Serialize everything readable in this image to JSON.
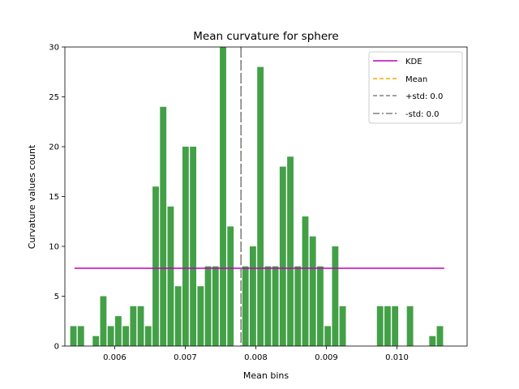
{
  "chart_data": {
    "type": "bar",
    "title": "Mean curvature for sphere",
    "xlabel": "Mean bins",
    "ylabel": "Curvature values count",
    "xlim": [
      0.005294,
      0.010994
    ],
    "ylim": [
      0,
      30
    ],
    "xticks": [
      0.006,
      0.007,
      0.008,
      0.009,
      0.01
    ],
    "xtick_labels": [
      "0.006",
      "0.007",
      "0.008",
      "0.009",
      "0.010"
    ],
    "yticks": [
      0,
      5,
      10,
      15,
      20,
      25,
      30
    ],
    "ytick_labels": [
      "0",
      "5",
      "10",
      "15",
      "20",
      "25",
      "30"
    ],
    "bin_start": 0.00537,
    "bin_width": 0.000106,
    "bar_fraction": 0.85,
    "bar_color": "#43a047",
    "values": [
      2,
      2,
      0,
      1,
      5,
      2,
      3,
      2,
      4,
      4,
      2,
      16,
      24,
      14,
      6,
      20,
      20,
      6,
      8,
      8,
      30,
      12,
      0,
      8,
      10,
      28,
      8,
      8,
      18,
      19,
      8,
      13,
      11,
      8,
      2,
      10,
      4,
      0,
      0,
      0,
      0,
      4,
      4,
      4,
      0,
      4,
      0,
      0,
      1,
      2
    ],
    "kde": {
      "name": "KDE",
      "x": [
        0.00543,
        0.01067
      ],
      "y": [
        7.8,
        7.8
      ],
      "color": "#bf00bf"
    },
    "mean": {
      "name": "Mean",
      "x": 0.00779,
      "color": "#ffa500"
    },
    "plus_std": {
      "name": "+std: 0.0",
      "x": 0.00779,
      "color": "#808080"
    },
    "minus_std": {
      "name": "-std: 0.0",
      "x": 0.00779,
      "color": "#808080"
    },
    "legend_position": "top-right",
    "grid": false
  }
}
